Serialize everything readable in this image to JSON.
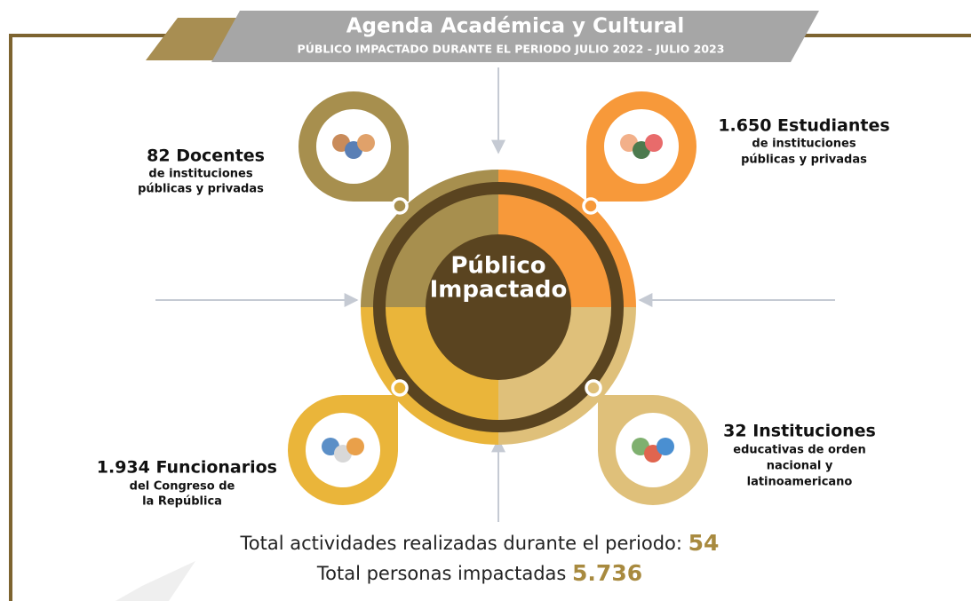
{
  "header": {
    "title": "Agenda Académica y Cultural",
    "subtitle": "PÚBLICO IMPACTADO DURANTE EL PERIODO JULIO 2022 - JULIO 2023"
  },
  "center": {
    "label_lines": [
      "Público",
      "Impactado"
    ]
  },
  "groups": [
    {
      "headline": "82 Docentes",
      "description": [
        "de instituciones",
        "públicas y privadas"
      ]
    },
    {
      "headline": "1.650 Estudiantes",
      "description": [
        "de instituciones",
        "públicas y privadas"
      ]
    },
    {
      "headline": "1.934 Funcionarios",
      "description": [
        "del Congreso de",
        "la República"
      ]
    },
    {
      "headline": "32 Instituciones",
      "description": [
        "educativas de orden",
        "nacional y",
        "latinoamericano"
      ]
    }
  ],
  "totals": [
    {
      "label": "Total actividades realizadas durante el periodo:",
      "value": "54"
    },
    {
      "label": "Total personas impactadas",
      "value": "5.736"
    }
  ]
}
